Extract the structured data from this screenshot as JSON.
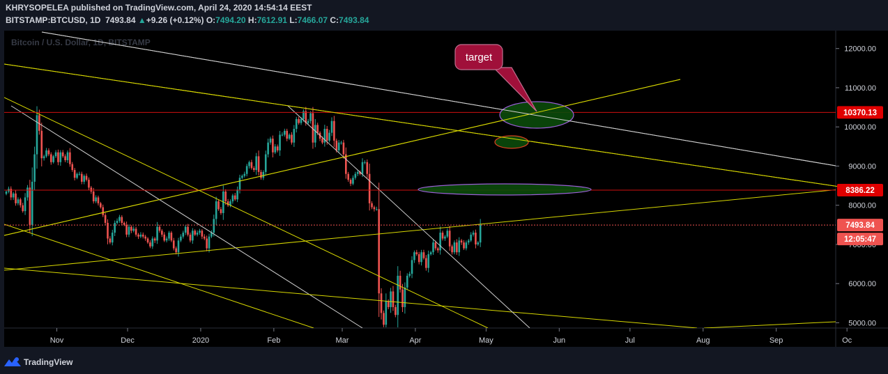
{
  "header": {
    "publisher": "KHRYSOPELEA published on TradingView.com, April 24, 2020 14:54:14 EEST",
    "symbol": "BITSTAMP:BTCUSD, 1D",
    "last": "7493.84",
    "change": "+9.26 (+0.12%)",
    "o_label": "O:",
    "o_value": "7494.20",
    "h_label": "H:",
    "h_value": "7612.91",
    "l_label": "L:",
    "l_value": "7466.07",
    "c_label": "C:",
    "c_value": "7493.84"
  },
  "watermark": "Bitcoin / U.S. Dollar, 1D, BITSTAMP",
  "annotation": {
    "text": "target"
  },
  "footer": {
    "brand": "TradingView"
  },
  "colors": {
    "background": "#131722",
    "up": "#26a69a",
    "down": "#ef5350",
    "trend_yellow": "#d8d800",
    "trend_white": "#d0d0d0",
    "level_red": "#d01010",
    "callout": "#a0103a"
  },
  "chart_data": {
    "type": "candlestick",
    "symbol": "BTCUSD",
    "timeframe": "1D",
    "ylim": [
      4800,
      12600
    ],
    "yticks": [
      5000,
      6000,
      7000,
      8000,
      9000,
      10000,
      11000,
      12000
    ],
    "ytick_labels": [
      "5000.00",
      "6000.00",
      "7000.00",
      "8000.00",
      "9000.00",
      "10000.00",
      "11000.00",
      "12000.00"
    ],
    "xtick_labels": [
      "Nov",
      "Dec",
      "2020",
      "Feb",
      "Mar",
      "Apr",
      "May",
      "Jun",
      "Jul",
      "Aug",
      "Sep",
      "Oc"
    ],
    "price_levels": [
      {
        "value": 10370.13,
        "label": "10370.13"
      },
      {
        "value": 8386.22,
        "label": "8386.22"
      }
    ],
    "current_price": {
      "value": 7493.84,
      "label": "7493.84",
      "countdown": "12:05:47"
    },
    "series": [
      {
        "close": [
          8350,
          8420,
          8200,
          8300,
          8050,
          8150,
          8000,
          7850,
          8200,
          8450,
          7500,
          8600,
          9300,
          10300,
          9900,
          9200,
          9250,
          9400,
          9300,
          9100,
          9250,
          9350,
          9100,
          9350,
          9250,
          9150,
          9350,
          9050,
          8900,
          8700,
          8800,
          8800,
          8600,
          8750,
          8650,
          8450,
          8350,
          8100,
          8200,
          8050,
          7950,
          7750,
          7550,
          7150,
          7050,
          7300,
          7550,
          7600,
          7700,
          7550,
          7500,
          7250,
          7450,
          7350,
          7400,
          7250,
          7200,
          7250,
          7200,
          7150,
          7050,
          6950,
          7150,
          7100,
          7450,
          7350,
          7250,
          7100,
          7150,
          7300,
          7100,
          6900,
          6800,
          7100,
          7200,
          7300,
          7450,
          7250,
          7100,
          7350,
          7250,
          7300,
          7350,
          7200,
          7150,
          6900,
          7200,
          7300,
          7650,
          8100,
          7900,
          7800,
          8350,
          8100,
          8000,
          8100,
          8250,
          8150,
          8400,
          8700,
          8750,
          8800,
          9000,
          9100,
          8950,
          8900,
          9250,
          8850,
          8700,
          8850,
          9300,
          9600,
          9700,
          9350,
          9500,
          9400,
          9800,
          9800,
          9900,
          9700,
          9800,
          9600,
          9950,
          10200,
          10100,
          10200,
          10400,
          10100,
          10150,
          10350,
          9600,
          10050,
          9850,
          9700,
          9600,
          9950,
          9650,
          9850,
          10150,
          9650,
          9400,
          9600,
          9600,
          9300,
          8800,
          8650,
          8550,
          8700,
          8800,
          8850,
          8800,
          9100,
          9100,
          8800,
          8050,
          7950,
          7900,
          7900,
          5750,
          5250,
          4950,
          5550,
          5400,
          5800,
          5400,
          5200,
          6200,
          5850,
          5400,
          5900,
          6200,
          6250,
          6600,
          6800,
          6750,
          6550,
          6800,
          6650,
          6400,
          6750,
          6800,
          7050,
          6900,
          6850,
          7300,
          7150,
          7200,
          7350,
          6950,
          6800,
          7050,
          6800,
          7100,
          7050,
          6900,
          7050,
          7100,
          7250,
          7300,
          7000,
          7050,
          7500
        ]
      }
    ],
    "highlight_zones": [
      {
        "center_x_date": "2020-05-27",
        "center_y": 10400
      },
      {
        "center_x_date": "2020-05-17",
        "center_y": 9620
      },
      {
        "center_x_date": "2020-05-27",
        "center_y": 8380
      }
    ]
  }
}
